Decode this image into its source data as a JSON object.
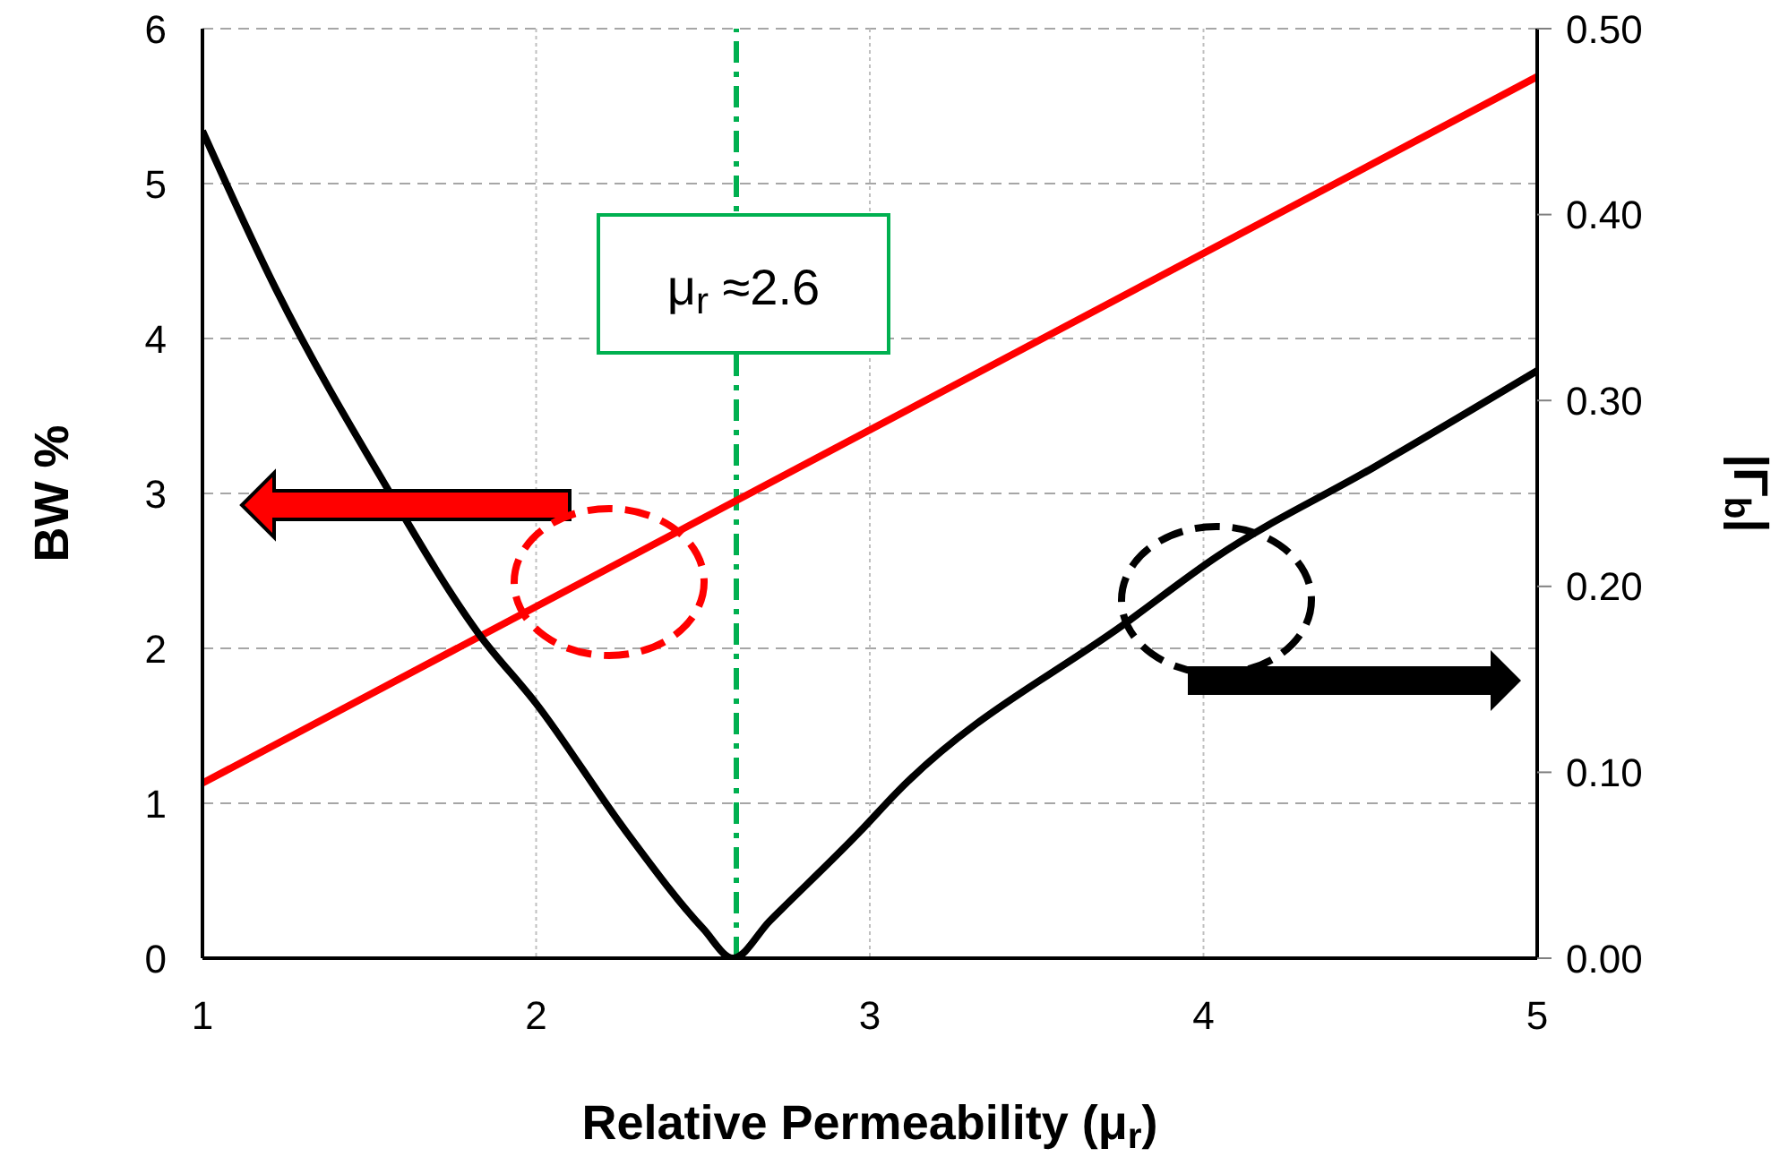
{
  "chart_data": {
    "type": "line",
    "xlabel": "Relative Permeability (μ$_{r}$)",
    "ylabel": "BW %",
    "y2label": "|Γ$_{b}$|",
    "xlim": [
      1,
      5
    ],
    "xticks": [
      1,
      2,
      3,
      4,
      5
    ],
    "ylim": [
      0,
      6
    ],
    "yticks": [
      0,
      1,
      2,
      3,
      4,
      5,
      6
    ],
    "y2lim": [
      0,
      0.5
    ],
    "y2ticks": [
      {
        "value": 0,
        "label": "0.00"
      },
      {
        "value": 0.1,
        "label": "0.10"
      },
      {
        "value": 0.2,
        "label": "0.20"
      },
      {
        "value": 0.3,
        "label": "0.30"
      },
      {
        "value": 0.4,
        "label": "0.40"
      },
      {
        "value": 0.5,
        "label": "0.50"
      }
    ],
    "grid": true,
    "marker": "none",
    "line_style": "solid",
    "series": [
      {
        "color": "#ff0000",
        "x": [
          1,
          5
        ],
        "values": [
          1.13,
          5.69
        ]
      },
      {
        "color": "#000000",
        "axis": "y2",
        "x": [
          1,
          1.22,
          1.54,
          1.83,
          2.0,
          2.27,
          2.5,
          2.59,
          2.7,
          2.97,
          3.08,
          3.78,
          4.04,
          4.51,
          5.0
        ],
        "values": [
          0.445,
          0.36,
          0.257,
          0.174,
          0.137,
          0.068,
          0.016,
          0,
          0.02,
          0.068,
          0.089,
          0.182,
          0.216,
          0.264,
          0.316
        ]
      }
    ],
    "ref_lines": [
      {
        "axis": "x",
        "value": 2.6,
        "label": "μ$_{r}$ ≈2.6",
        "color": "#00b050",
        "line_style": "dashdot"
      }
    ]
  }
}
